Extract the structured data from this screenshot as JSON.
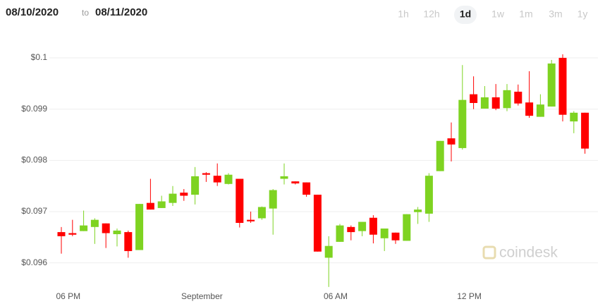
{
  "header": {
    "date_from": "08/10/2020",
    "to": "to",
    "date_to": "08/11/2020",
    "ranges": [
      "1h",
      "12h",
      "1d",
      "1w",
      "1m",
      "3m",
      "1y"
    ],
    "selected_range": "1d"
  },
  "watermark": "coindesk",
  "chart_data": {
    "type": "candlestick",
    "categories": [
      null,
      "06 PM",
      null,
      null,
      null,
      null,
      null,
      null,
      null,
      null,
      null,
      null,
      null,
      "September",
      null,
      null,
      null,
      null,
      null,
      null,
      null,
      null,
      null,
      null,
      null,
      "06 AM",
      null,
      null,
      null,
      null,
      null,
      null,
      null,
      null,
      null,
      null,
      null,
      "12 PM",
      null,
      null,
      null,
      null,
      null,
      null,
      null,
      null,
      null,
      null
    ],
    "open": [
      0.0966,
      0.09658,
      0.09662,
      0.0967,
      0.09677,
      0.09656,
      0.0966,
      0.09625,
      0.09717,
      0.09707,
      0.09717,
      0.09737,
      0.09733,
      0.09775,
      0.0977,
      0.09754,
      0.09764,
      0.09684,
      0.09687,
      0.09706,
      0.09764,
      0.09759,
      0.09757,
      0.09733,
      0.0961,
      0.09641,
      0.0967,
      0.09662,
      0.09688,
      0.09648,
      0.09659,
      0.09643,
      0.09699,
      0.09696,
      0.09779,
      0.09843,
      0.09824,
      0.09929,
      0.09901,
      0.09923,
      0.09902,
      0.09934,
      0.09913,
      0.09885,
      0.09905,
      0.1,
      0.09876,
      0.09893
    ],
    "high": [
      0.0967,
      0.09684,
      0.09702,
      0.09687,
      0.09677,
      0.09667,
      0.09663,
      0.09715,
      0.09764,
      0.09731,
      0.0975,
      0.09744,
      0.09787,
      0.09777,
      0.09794,
      0.09775,
      0.09764,
      0.097,
      0.0971,
      0.09744,
      0.09794,
      0.09759,
      0.09757,
      0.09733,
      0.09652,
      0.09676,
      0.09673,
      0.0968,
      0.09693,
      0.09667,
      0.09659,
      0.09695,
      0.09709,
      0.09775,
      0.09838,
      0.09874,
      0.09986,
      0.09964,
      0.09945,
      0.09949,
      0.09949,
      0.09948,
      0.09974,
      0.09929,
      0.09996,
      0.10007,
      0.09896,
      0.09893
    ],
    "low": [
      0.09618,
      0.09652,
      0.09662,
      0.09637,
      0.09629,
      0.09632,
      0.0961,
      0.09625,
      0.09704,
      0.09707,
      0.09711,
      0.09721,
      0.09714,
      0.09758,
      0.0975,
      0.09753,
      0.09669,
      0.09678,
      0.09684,
      0.09655,
      0.09753,
      0.09753,
      0.09729,
      0.09622,
      0.09553,
      0.09641,
      0.09644,
      0.09652,
      0.09638,
      0.09623,
      0.09637,
      0.09643,
      0.09676,
      0.0968,
      0.09779,
      0.09798,
      0.09821,
      0.099,
      0.09901,
      0.09898,
      0.09896,
      0.09907,
      0.09883,
      0.09885,
      0.09905,
      0.09876,
      0.09853,
      0.09813
    ],
    "close": [
      0.09652,
      0.09655,
      0.09673,
      0.09684,
      0.09658,
      0.09663,
      0.09623,
      0.09715,
      0.09704,
      0.0972,
      0.09735,
      0.09731,
      0.09769,
      0.09772,
      0.09757,
      0.09772,
      0.09678,
      0.09681,
      0.09709,
      0.09742,
      0.09769,
      0.09755,
      0.09733,
      0.09622,
      0.09633,
      0.09673,
      0.0966,
      0.0968,
      0.09655,
      0.09667,
      0.09644,
      0.09695,
      0.09704,
      0.0977,
      0.09838,
      0.09831,
      0.09918,
      0.09912,
      0.09923,
      0.09901,
      0.09937,
      0.09911,
      0.09887,
      0.09909,
      0.09989,
      0.09889,
      0.09893,
      0.09823
    ],
    "up_color": "#7ed321",
    "down_color": "#ff0000",
    "ylim": [
      0.0955,
      0.1004
    ],
    "yticks": [
      {
        "value": 0.096,
        "label": "$0.096"
      },
      {
        "value": 0.097,
        "label": "$0.097"
      },
      {
        "value": 0.098,
        "label": "$0.098"
      },
      {
        "value": 0.099,
        "label": "$0.099"
      },
      {
        "value": 0.1,
        "label": "$0.1"
      }
    ],
    "grid": true
  }
}
